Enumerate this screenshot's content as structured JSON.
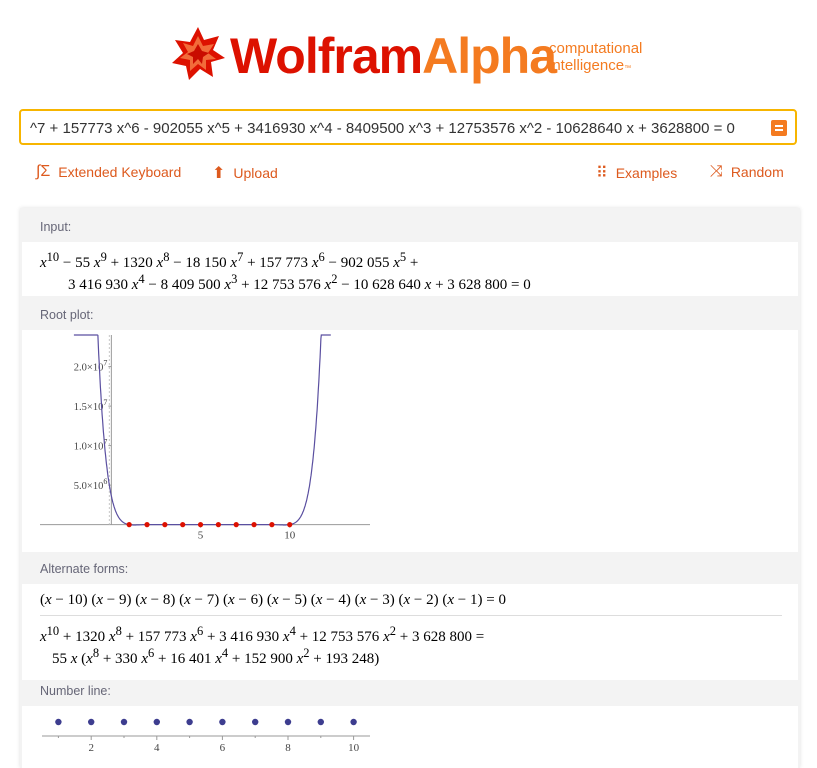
{
  "logo": {
    "wolfram": "Wolfram",
    "alpha": "Alpha",
    "tagline1": "computational",
    "tagline2": "intelligence",
    "tm": "™"
  },
  "query": {
    "value": "^7 + 157773 x^6 - 902055 x^5 + 3416930 x^4 - 8409500 x^3 + 12753576 x^2 - 10628640 x + 3628800 = 0"
  },
  "toolbar": {
    "keyboard": "Extended Keyboard",
    "upload": "Upload",
    "examples": "Examples",
    "random": "Random"
  },
  "pods": {
    "input": {
      "title": "Input:"
    },
    "rootplot": {
      "title": "Root plot:"
    },
    "alternate": {
      "title": "Alternate forms:"
    },
    "numberline": {
      "title": "Number line:"
    }
  },
  "colors": {
    "brand_red": "#dd1100",
    "brand_orange": "#f47b20",
    "query_border": "#f7b500",
    "root_red": "#dd1100",
    "curve": "#5a4fa0",
    "dot_blue": "#3d3d8f"
  },
  "chart_data": [
    {
      "type": "line",
      "title": "Root plot",
      "xlim": [
        -4,
        14.5
      ],
      "ylim": [
        -300000,
        24000000
      ],
      "x_ticks": [
        5,
        10
      ],
      "y_ticks": [
        {
          "value": 5000000,
          "mant": "5.0",
          "exp": "6"
        },
        {
          "value": 10000000,
          "mant": "1.0",
          "exp": "7"
        },
        {
          "value": 15000000,
          "mant": "1.5",
          "exp": "7"
        },
        {
          "value": 20000000,
          "mant": "2.0",
          "exp": "7"
        }
      ],
      "roots": [
        1,
        2,
        3,
        4,
        5,
        6,
        7,
        8,
        9,
        10
      ],
      "series": [
        {
          "values": "(x-1)(x-2)...(x-10)"
        }
      ]
    },
    {
      "type": "scatter",
      "title": "Number line",
      "xlim": [
        0.5,
        10.5
      ],
      "x_ticks": [
        2,
        4,
        6,
        8,
        10
      ],
      "points": [
        1,
        2,
        3,
        4,
        5,
        6,
        7,
        8,
        9,
        10
      ]
    }
  ]
}
